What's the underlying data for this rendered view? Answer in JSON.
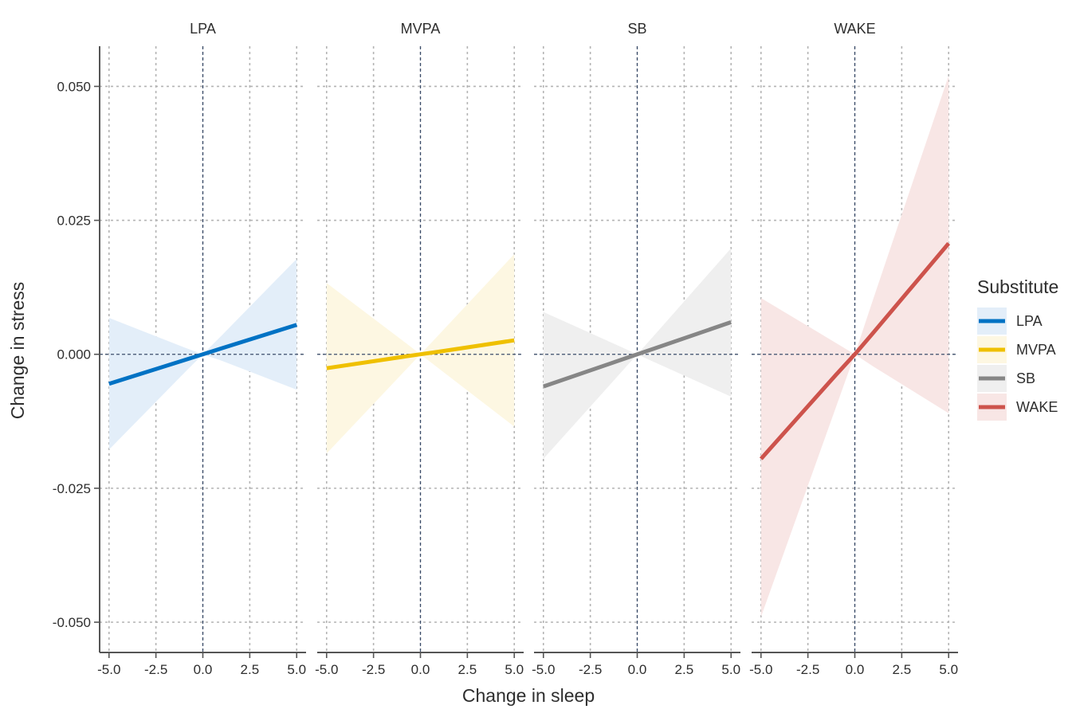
{
  "chart_data": {
    "type": "line",
    "facets": [
      "LPA",
      "MVPA",
      "SB",
      "WAKE"
    ],
    "xlabel": "Change in sleep",
    "ylabel": "Change in stress",
    "xlim": [
      -5.5,
      5.5
    ],
    "ylim": [
      -0.0555,
      0.0575
    ],
    "xticks": [
      -5.0,
      -2.5,
      0.0,
      2.5,
      5.0
    ],
    "xtick_labels": [
      "-5.0",
      "-2.5",
      "0.0",
      "2.5",
      "5.0"
    ],
    "yticks": [
      -0.05,
      -0.025,
      0.0,
      0.025,
      0.05
    ],
    "ytick_labels": [
      "-0.050",
      "-0.025",
      "0.000",
      "0.025",
      "0.050"
    ],
    "grid": true,
    "reference_lines": {
      "x": 0,
      "y": 0
    },
    "legend": {
      "title": "Substitute",
      "position": "right",
      "entries": [
        "LPA",
        "MVPA",
        "SB",
        "WAKE"
      ]
    },
    "series": [
      {
        "name": "LPA",
        "color": "#0072c4",
        "fill": "#e3eef9",
        "x": [
          -5,
          -1,
          0,
          1,
          5
        ],
        "y": [
          -0.0055,
          -0.0011,
          0.0,
          0.0011,
          0.0055
        ],
        "lower": [
          -0.0178,
          -0.0035,
          0.0,
          -0.0012,
          -0.0066
        ],
        "upper": [
          0.0068,
          0.0013,
          0.0,
          0.0035,
          0.0178
        ]
      },
      {
        "name": "MVPA",
        "color": "#efc000",
        "fill": "#fdf7e2",
        "x": [
          -5,
          -1,
          0,
          1,
          5
        ],
        "y": [
          -0.0026,
          -0.0005,
          0.0,
          0.0005,
          0.0026
        ],
        "lower": [
          -0.0185,
          -0.0037,
          0.0,
          -0.0027,
          -0.0135
        ],
        "upper": [
          0.0133,
          0.0027,
          0.0,
          0.0037,
          0.0187
        ]
      },
      {
        "name": "SB",
        "color": "#868686",
        "fill": "#efefef",
        "x": [
          -5,
          -1,
          0,
          1,
          5
        ],
        "y": [
          -0.006,
          -0.0012,
          0.0,
          0.0012,
          0.006
        ],
        "lower": [
          -0.0195,
          -0.0039,
          0.0,
          -0.0016,
          -0.0079
        ],
        "upper": [
          0.0079,
          0.0016,
          0.0,
          0.0039,
          0.0198
        ]
      },
      {
        "name": "WAKE",
        "color": "#cd534c",
        "fill": "#f8e6e5",
        "x": [
          -5,
          -1,
          0,
          1,
          5
        ],
        "y": [
          -0.0195,
          -0.0038,
          0.0,
          0.0041,
          0.0207
        ],
        "lower": [
          -0.049,
          -0.0098,
          0.0,
          -0.0023,
          -0.011
        ],
        "upper": [
          0.0105,
          0.0021,
          0.0,
          0.0105,
          0.052
        ]
      }
    ]
  }
}
